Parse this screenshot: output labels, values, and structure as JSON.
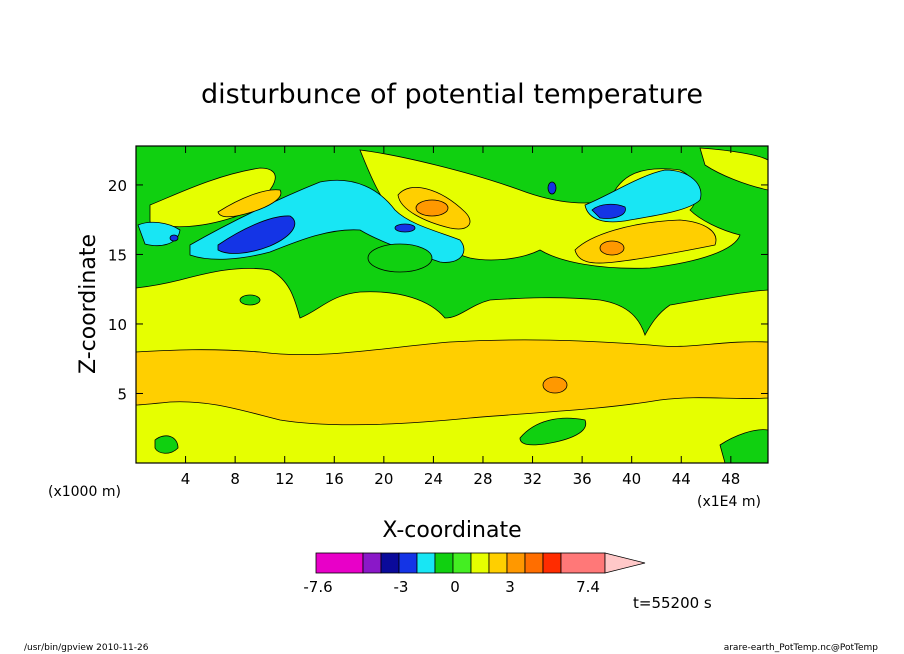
{
  "chart_data": {
    "type": "heatmap",
    "title": "disturbunce of potential temperature",
    "xlabel": "X-coordinate",
    "ylabel": "Z-coordinate",
    "x_ticks": [
      "4",
      "8",
      "12",
      "16",
      "20",
      "24",
      "28",
      "32",
      "36",
      "40",
      "44",
      "48"
    ],
    "y_ticks": [
      "5",
      "10",
      "15",
      "20"
    ],
    "x_unit": "(x1E4 m)",
    "y_unit": "(x1000 m)",
    "x_range": [
      0,
      51
    ],
    "y_range": [
      0,
      22.8
    ],
    "colorbar": {
      "labels": [
        "-7.6",
        "-3",
        "0",
        "3",
        "7.4"
      ],
      "colors": [
        "#e800c8",
        "#8a18c8",
        "#0a0a9a",
        "#1434e6",
        "#18e6f4",
        "#10d010",
        "#44ee22",
        "#e6ff00",
        "#ffcf00",
        "#ff9800",
        "#ff6e00",
        "#ff2c00",
        "#ff7878",
        "#ffc8c8"
      ]
    },
    "time_label": "t=55200 s",
    "footer_left": "/usr/bin/gpview  2010-11-26",
    "footer_right": "arare-earth_PotTemp.nc@PotTemp"
  }
}
